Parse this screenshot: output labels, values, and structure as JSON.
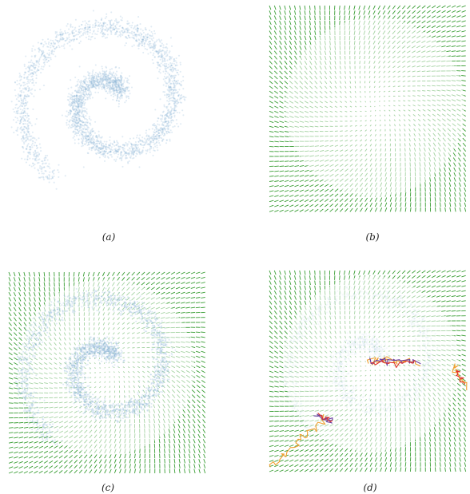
{
  "figure": {
    "panels": [
      {
        "caption": "(a)",
        "content": [
          "spiral-samples"
        ]
      },
      {
        "caption": "(b)",
        "content": [
          "score-field"
        ]
      },
      {
        "caption": "(c)",
        "content": [
          "score-field",
          "spiral-samples"
        ]
      },
      {
        "caption": "(d)",
        "content": [
          "score-field",
          "faint-spiral",
          "sampling-trajectories"
        ]
      }
    ],
    "colors": {
      "samples": "#8fb6d6",
      "arrows": "#3a9e35",
      "trajectory_a": "#f0a030",
      "trajectory_b": "#6b3fa0",
      "trajectory_c": "#e0342b"
    },
    "spiral_shape": {
      "turns": 1.75,
      "arms": 1
    }
  }
}
